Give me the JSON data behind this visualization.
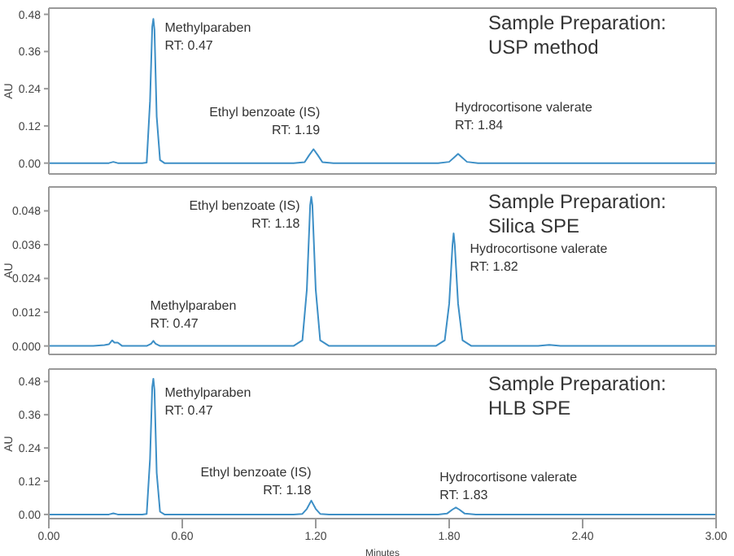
{
  "chart_data": [
    {
      "type": "line",
      "title": "Sample Preparation:\nUSP method",
      "ylabel": "AU",
      "x": [
        0,
        0.27,
        0.29,
        0.31,
        0.42,
        0.44,
        0.455,
        0.465,
        0.47,
        0.475,
        0.485,
        0.5,
        0.52,
        0.6,
        1.1,
        1.15,
        1.17,
        1.19,
        1.21,
        1.23,
        1.28,
        1.75,
        1.8,
        1.825,
        1.84,
        1.855,
        1.88,
        1.93,
        3.0
      ],
      "series": [
        {
          "color": "#3d8fc6",
          "values": [
            0,
            0,
            0.004,
            0,
            0,
            0.002,
            0.2,
            0.44,
            0.465,
            0.43,
            0.15,
            0.01,
            0,
            0,
            0,
            0.003,
            0.025,
            0.045,
            0.025,
            0.003,
            0,
            0,
            0.004,
            0.02,
            0.03,
            0.02,
            0.004,
            0,
            0
          ]
        }
      ],
      "xlim": [
        0,
        3
      ],
      "ylim": [
        -0.035,
        0.5
      ],
      "yticks": [
        {
          "value": 0,
          "label": "0.00"
        },
        {
          "value": 0.12,
          "label": "0.12"
        },
        {
          "value": 0.24,
          "label": "0.24"
        },
        {
          "value": 0.36,
          "label": "0.36"
        },
        {
          "value": 0.48,
          "label": "0.48"
        }
      ],
      "tick_labels": "y",
      "annotations": [
        {
          "text": "Methylparaben\nRT: 0.47",
          "x": 0.47,
          "y": 0.465
        },
        {
          "text": "Ethyl benzoate (IS)\nRT: 1.19",
          "x": 1.19,
          "y": 0.045
        },
        {
          "text": "Hydrocortisone valerate\nRT: 1.84",
          "x": 1.84,
          "y": 0.03
        }
      ]
    },
    {
      "type": "line",
      "title": "Sample Preparation:\nSilica SPE",
      "ylabel": "AU",
      "x": [
        0,
        0.2,
        0.25,
        0.27,
        0.285,
        0.295,
        0.31,
        0.33,
        0.44,
        0.46,
        0.47,
        0.48,
        0.5,
        1.1,
        1.14,
        1.16,
        1.175,
        1.18,
        1.185,
        1.2,
        1.22,
        1.26,
        1.74,
        1.78,
        1.8,
        1.815,
        1.82,
        1.825,
        1.84,
        1.86,
        1.9,
        2.2,
        2.25,
        2.3,
        3.0
      ],
      "series": [
        {
          "color": "#3d8fc6",
          "values": [
            0,
            0,
            0.0003,
            0.0006,
            0.002,
            0.0012,
            0.0012,
            0,
            0,
            0.0008,
            0.0018,
            0.0008,
            0,
            0,
            0.002,
            0.02,
            0.05,
            0.053,
            0.05,
            0.02,
            0.002,
            0,
            0,
            0.002,
            0.015,
            0.036,
            0.04,
            0.036,
            0.015,
            0.002,
            0,
            0,
            0.0004,
            0,
            0
          ]
        }
      ],
      "xlim": [
        0,
        3
      ],
      "ylim": [
        -0.003,
        0.0565
      ],
      "yticks": [
        {
          "value": 0,
          "label": "0.000"
        },
        {
          "value": 0.012,
          "label": "0.012"
        },
        {
          "value": 0.024,
          "label": "0.024"
        },
        {
          "value": 0.036,
          "label": "0.036"
        },
        {
          "value": 0.048,
          "label": "0.048"
        }
      ],
      "tick_labels": "y",
      "annotations": [
        {
          "text": "Ethyl benzoate (IS)\nRT: 1.18",
          "x": 1.18,
          "y": 0.053
        },
        {
          "text": "Methylparaben\nRT: 0.47",
          "x": 0.47,
          "y": 0.0018
        },
        {
          "text": "Hydrocortisone valerate\nRT: 1.82",
          "x": 1.82,
          "y": 0.04
        }
      ]
    },
    {
      "type": "line",
      "title": "Sample Preparation:\nHLB SPE",
      "xlabel": "Minutes",
      "ylabel": "AU",
      "x": [
        0,
        0.27,
        0.29,
        0.31,
        0.42,
        0.44,
        0.455,
        0.465,
        0.47,
        0.475,
        0.485,
        0.5,
        0.52,
        1.1,
        1.14,
        1.16,
        1.18,
        1.2,
        1.22,
        1.26,
        1.75,
        1.79,
        1.815,
        1.83,
        1.845,
        1.87,
        1.92,
        3.0
      ],
      "series": [
        {
          "color": "#3d8fc6",
          "values": [
            0,
            0,
            0.004,
            0,
            0,
            0.002,
            0.2,
            0.46,
            0.49,
            0.45,
            0.15,
            0.01,
            0,
            0,
            0.002,
            0.02,
            0.05,
            0.02,
            0.002,
            0,
            0,
            0.003,
            0.018,
            0.025,
            0.018,
            0.003,
            0,
            0
          ]
        }
      ],
      "xlim": [
        0,
        3
      ],
      "ylim": [
        -0.015,
        0.525
      ],
      "xticks": [
        {
          "value": 0,
          "label": "0.00"
        },
        {
          "value": 0.6,
          "label": "0.60"
        },
        {
          "value": 1.2,
          "label": "1.20"
        },
        {
          "value": 1.8,
          "label": "1.80"
        },
        {
          "value": 2.4,
          "label": "2.40"
        },
        {
          "value": 3,
          "label": "3.00"
        }
      ],
      "yticks": [
        {
          "value": 0,
          "label": "0.00"
        },
        {
          "value": 0.12,
          "label": "0.12"
        },
        {
          "value": 0.24,
          "label": "0.24"
        },
        {
          "value": 0.36,
          "label": "0.36"
        },
        {
          "value": 0.48,
          "label": "0.48"
        }
      ],
      "annotations": [
        {
          "text": "Methylparaben\nRT: 0.47",
          "x": 0.47,
          "y": 0.49
        },
        {
          "text": "Ethyl benzoate (IS)\nRT: 1.18",
          "x": 1.18,
          "y": 0.05
        },
        {
          "text": "Hydrocortisone valerate\nRT: 1.83",
          "x": 1.83,
          "y": 0.025
        }
      ]
    }
  ]
}
